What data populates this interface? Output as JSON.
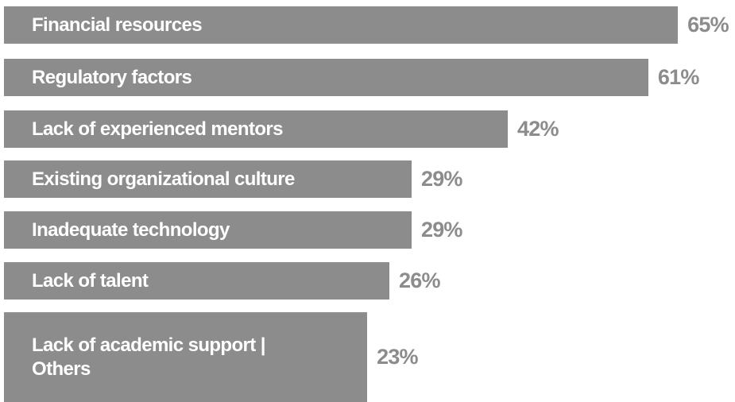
{
  "chart_data": {
    "type": "bar",
    "orientation": "horizontal",
    "categories": [
      "Financial resources",
      "Regulatory factors",
      "Lack of experienced mentors",
      "Existing organizational culture",
      "Inadequate technology",
      "Lack of talent",
      "Lack of academic support | Others"
    ],
    "values": [
      65,
      61,
      42,
      29,
      29,
      26,
      23
    ],
    "value_labels": [
      "65%",
      "61%",
      "42%",
      "29%",
      "29%",
      "26%",
      "23%"
    ],
    "color": "#8c8c8c"
  }
}
